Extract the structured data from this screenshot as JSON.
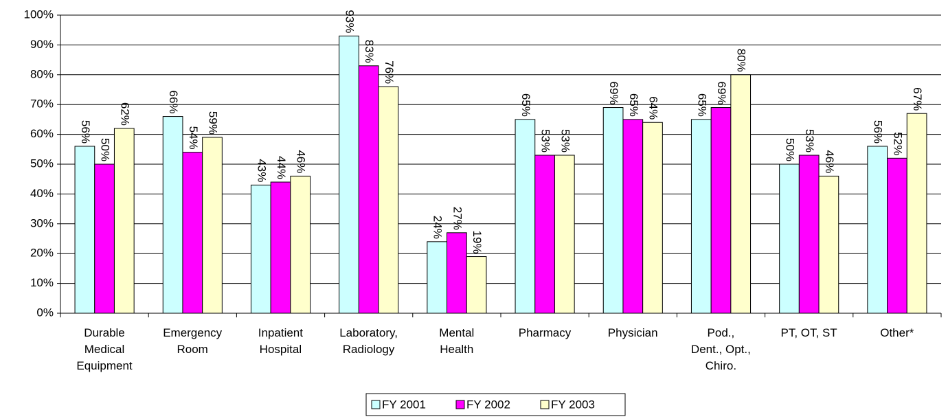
{
  "chart_data": {
    "type": "bar",
    "categories": [
      "Durable\nMedical\nEquipment",
      "Emergency\nRoom",
      "Inpatient\nHospital",
      "Laboratory,\nRadiology",
      "Mental\nHealth",
      "Pharmacy",
      "Physician",
      "Pod.,\nDent., Opt.,\nChiro.",
      "PT, OT, ST",
      "Other*"
    ],
    "series": [
      {
        "name": "FY 2001",
        "color": "#ccffff",
        "values": [
          56,
          66,
          43,
          93,
          24,
          65,
          69,
          65,
          50,
          56
        ],
        "value_labels": [
          "56%",
          "66%",
          "43%",
          "93%",
          "24%",
          "65%",
          "69%",
          "65%",
          "50%",
          "56%"
        ]
      },
      {
        "name": "FY 2002",
        "color": "#ff00ff",
        "values": [
          50,
          54,
          44,
          83,
          27,
          53,
          65,
          69,
          53,
          52
        ],
        "value_labels": [
          "50%",
          "54%",
          "44%",
          "83%",
          "27%",
          "53%",
          "65%",
          "69%",
          "53%",
          "52%"
        ]
      },
      {
        "name": "FY 2003",
        "color": "#ffffcc",
        "values": [
          62,
          59,
          46,
          76,
          19,
          53,
          64,
          80,
          46,
          67
        ],
        "value_labels": [
          "62%",
          "59%",
          "46%",
          "76%",
          "19%",
          "53%",
          "64%",
          "80%",
          "46%",
          "67%"
        ]
      }
    ],
    "ylim": [
      0,
      100
    ],
    "yticks": [
      {
        "value": 0,
        "label": "0%"
      },
      {
        "value": 10,
        "label": "10%"
      },
      {
        "value": 20,
        "label": "20%"
      },
      {
        "value": 30,
        "label": "30%"
      },
      {
        "value": 40,
        "label": "40%"
      },
      {
        "value": 50,
        "label": "50%"
      },
      {
        "value": 60,
        "label": "60%"
      },
      {
        "value": 70,
        "label": "70%"
      },
      {
        "value": 80,
        "label": "80%"
      },
      {
        "value": 90,
        "label": "90%"
      },
      {
        "value": 100,
        "label": "100%"
      }
    ],
    "grid": true,
    "legend": "bottom"
  }
}
